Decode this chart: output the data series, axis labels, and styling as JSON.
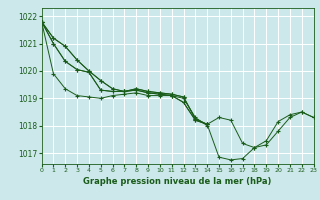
{
  "bg_color": "#cce8ea",
  "grid_color": "#ffffff",
  "line_color": "#1a5c1a",
  "marker_color": "#1a5c1a",
  "xlabel": "Graphe pression niveau de la mer (hPa)",
  "xlabel_color": "#1a5c1a",
  "ylabel_ticks": [
    1017,
    1018,
    1019,
    1020,
    1021,
    1022
  ],
  "xlim": [
    0,
    23
  ],
  "ylim": [
    1016.6,
    1022.3
  ],
  "xticks": [
    0,
    1,
    2,
    3,
    4,
    5,
    6,
    7,
    8,
    9,
    10,
    11,
    12,
    13,
    14,
    15,
    16,
    17,
    18,
    19,
    20,
    21,
    22,
    23
  ],
  "xtick_labels": [
    "0",
    "1",
    "2",
    "3",
    "4",
    "5",
    "6",
    "7",
    "8",
    "9",
    "10",
    "11",
    "12",
    "13",
    "14",
    "15",
    "16",
    "17",
    "18",
    "19",
    "20",
    "21",
    "22",
    "23"
  ],
  "series": [
    [
      1021.8,
      1021.2,
      1020.9,
      1020.4,
      1020.0,
      1019.65,
      1019.35,
      1019.25,
      1019.3,
      1019.2,
      1019.15,
      1019.1,
      1018.85,
      1018.2,
      1018.05,
      1018.3,
      1018.2,
      1017.35,
      1017.2,
      1017.3,
      1017.8,
      1018.3,
      1018.5,
      1018.3
    ],
    [
      1021.8,
      1021.2,
      1020.9,
      1020.4,
      1020.0,
      1019.65,
      1019.35,
      1019.25,
      1019.3,
      1019.2,
      1019.15,
      1019.1,
      1018.85,
      1018.2,
      1018.05,
      1016.85,
      1016.75,
      1016.8,
      1017.2,
      1017.45,
      1018.15,
      1018.4,
      1018.5,
      1018.3
    ],
    [
      1021.8,
      1021.0,
      1020.35,
      1020.05,
      1019.95,
      1019.3,
      1019.25,
      1019.25,
      1019.35,
      1019.25,
      1019.2,
      1019.15,
      1019.05,
      1018.25,
      1018.05,
      null,
      null,
      null,
      null,
      null,
      null,
      null,
      null,
      null
    ],
    [
      1021.8,
      1021.0,
      1020.35,
      1020.05,
      1019.95,
      1019.3,
      1019.25,
      1019.25,
      1019.35,
      1019.25,
      1019.2,
      1019.15,
      1019.05,
      1018.25,
      1018.05,
      null,
      null,
      null,
      null,
      null,
      null,
      null,
      null,
      null
    ],
    [
      1021.8,
      1019.9,
      1019.35,
      1019.1,
      1019.05,
      1019.0,
      1019.1,
      1019.15,
      1019.2,
      1019.1,
      1019.1,
      1019.1,
      1019.0,
      1018.3,
      1018.0,
      null,
      null,
      null,
      null,
      null,
      null,
      null,
      null,
      null
    ]
  ]
}
